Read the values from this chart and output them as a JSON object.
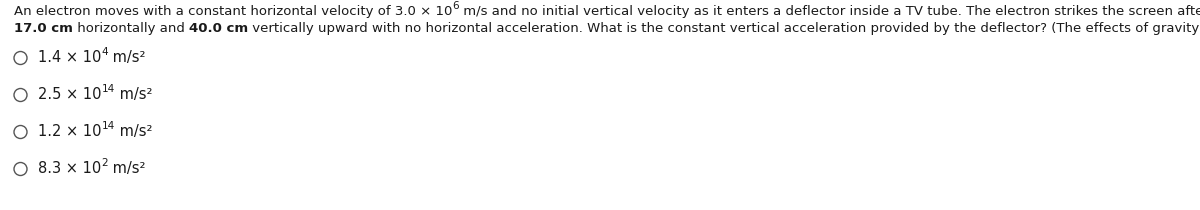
{
  "background_color": "#ffffff",
  "text_color": "#1a1a1a",
  "font_size_q": 9.5,
  "font_size_opt": 10.5,
  "font_size_sup": 7.5,
  "options": [
    {
      "base": "1.4 × 10",
      "exp": "4",
      "unit": " m/s²"
    },
    {
      "base": "2.5 × 10",
      "exp": "14",
      "unit": " m/s²"
    },
    {
      "base": "1.2 × 10",
      "exp": "14",
      "unit": " m/s²"
    },
    {
      "base": "8.3 × 10",
      "exp": "2",
      "unit": " m/s²"
    }
  ]
}
